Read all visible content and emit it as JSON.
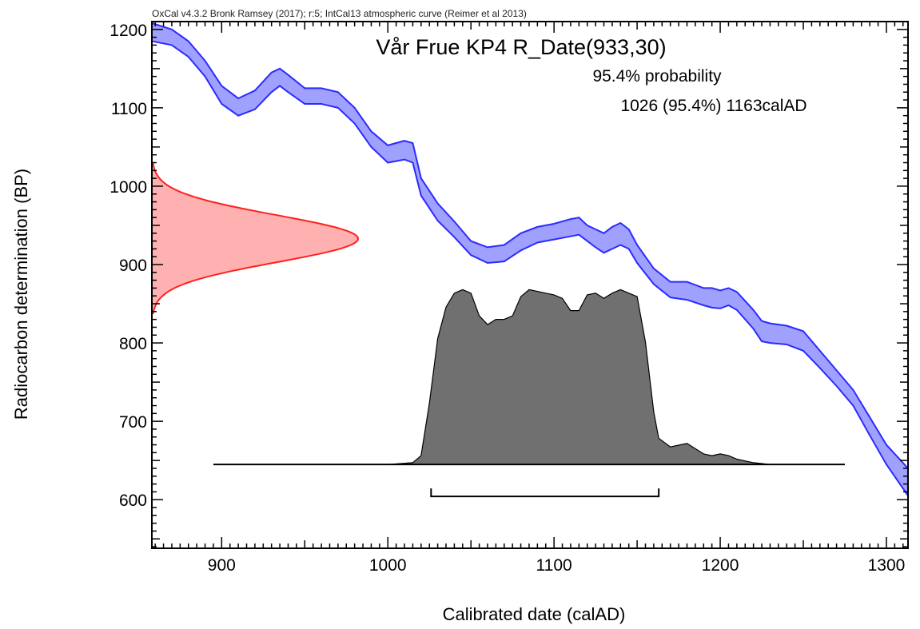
{
  "chart_data": {
    "type": "area",
    "header": "OxCal v4.3.2 Bronk Ramsey (2017); r:5; IntCal13 atmospheric curve (Reimer et al 2013)",
    "title": "Vår Frue KP4 R_Date(933,30)",
    "probability_label": "95.4% probability",
    "range_label": "1026 (95.4%) 1163calAD",
    "xlabel": "Calibrated date (calAD)",
    "ylabel": "Radiocarbon determination (BP)",
    "xlim": [
      858,
      1313
    ],
    "ylim": [
      538,
      1210
    ],
    "x_ticks": [
      900,
      1000,
      1100,
      1200,
      1300
    ],
    "y_ticks": [
      600,
      700,
      800,
      900,
      1000,
      1100,
      1200
    ],
    "colors": {
      "curve_stroke": "#2b2bff",
      "curve_fill": "#a0a0ff",
      "radiocarbon_stroke": "#ff2020",
      "radiocarbon_fill": "#ffb0b0",
      "posterior_fill": "#707070",
      "axis": "#000000"
    },
    "calibration_curve": {
      "name": "IntCal13",
      "x": [
        858,
        870,
        880,
        890,
        900,
        910,
        920,
        930,
        935,
        940,
        950,
        960,
        970,
        980,
        990,
        1000,
        1010,
        1015,
        1020,
        1030,
        1040,
        1050,
        1060,
        1070,
        1080,
        1090,
        1100,
        1110,
        1115,
        1120,
        1125,
        1130,
        1135,
        1140,
        1145,
        1150,
        1160,
        1170,
        1180,
        1190,
        1195,
        1200,
        1205,
        1210,
        1220,
        1225,
        1230,
        1240,
        1250,
        1260,
        1270,
        1280,
        1290,
        1300,
        1313
      ],
      "upper": [
        1208,
        1200,
        1185,
        1160,
        1128,
        1112,
        1122,
        1145,
        1150,
        1142,
        1125,
        1125,
        1120,
        1100,
        1070,
        1052,
        1058,
        1055,
        1010,
        978,
        955,
        930,
        922,
        925,
        940,
        948,
        952,
        958,
        960,
        950,
        945,
        940,
        948,
        953,
        945,
        925,
        895,
        878,
        878,
        870,
        870,
        867,
        870,
        865,
        842,
        828,
        825,
        822,
        815,
        790,
        765,
        740,
        705,
        670,
        640
      ],
      "lower": [
        1185,
        1180,
        1165,
        1140,
        1105,
        1090,
        1098,
        1120,
        1128,
        1120,
        1105,
        1105,
        1100,
        1080,
        1050,
        1030,
        1034,
        1030,
        988,
        956,
        935,
        912,
        902,
        904,
        918,
        928,
        932,
        936,
        938,
        930,
        922,
        915,
        920,
        925,
        920,
        902,
        875,
        858,
        855,
        848,
        845,
        844,
        848,
        842,
        818,
        802,
        800,
        798,
        790,
        768,
        745,
        720,
        682,
        645,
        605
      ]
    },
    "radiocarbon_date": {
      "mean": 933,
      "sigma": 30
    },
    "posterior": {
      "baseline_range": [
        895,
        1275
      ],
      "x": [
        1000,
        1015,
        1020,
        1025,
        1030,
        1035,
        1040,
        1045,
        1050,
        1055,
        1060,
        1065,
        1070,
        1075,
        1080,
        1085,
        1090,
        1095,
        1100,
        1105,
        1110,
        1115,
        1120,
        1125,
        1130,
        1135,
        1140,
        1145,
        1150,
        1155,
        1160,
        1163,
        1170,
        1175,
        1180,
        1185,
        1190,
        1195,
        1200,
        1205,
        1210,
        1220,
        1230
      ],
      "density": [
        0.0,
        0.01,
        0.05,
        0.35,
        0.72,
        0.9,
        0.98,
        1.0,
        0.98,
        0.85,
        0.8,
        0.83,
        0.83,
        0.85,
        0.96,
        1.0,
        0.99,
        0.98,
        0.97,
        0.95,
        0.88,
        0.88,
        0.97,
        0.98,
        0.95,
        0.98,
        1.0,
        0.98,
        0.96,
        0.7,
        0.3,
        0.15,
        0.1,
        0.11,
        0.12,
        0.09,
        0.06,
        0.05,
        0.06,
        0.05,
        0.03,
        0.01,
        0.0
      ],
      "peak_bp": 868,
      "baseline_bp": 645
    },
    "hpd_interval": [
      1026,
      1163
    ]
  }
}
